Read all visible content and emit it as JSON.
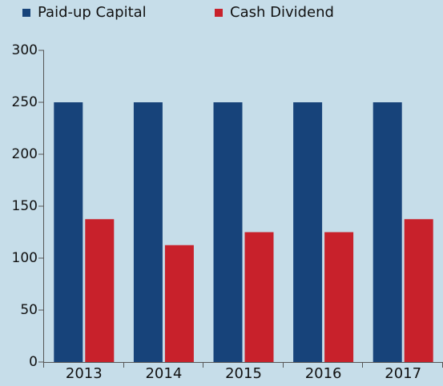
{
  "chart_data": {
    "type": "bar",
    "categories": [
      "2013",
      "2014",
      "2015",
      "2016",
      "2017"
    ],
    "series": [
      {
        "name": "Paid-up Capital",
        "color": "#17437a",
        "values": [
          250,
          250,
          250,
          250,
          250
        ]
      },
      {
        "name": "Cash Dividend",
        "color": "#c8212b",
        "values": [
          137.5,
          112.5,
          125,
          125,
          137.5
        ]
      }
    ],
    "ylim": [
      0,
      300
    ],
    "yticks": [
      0,
      50,
      100,
      150,
      200,
      250,
      300
    ],
    "grid": false,
    "legend": "top"
  }
}
